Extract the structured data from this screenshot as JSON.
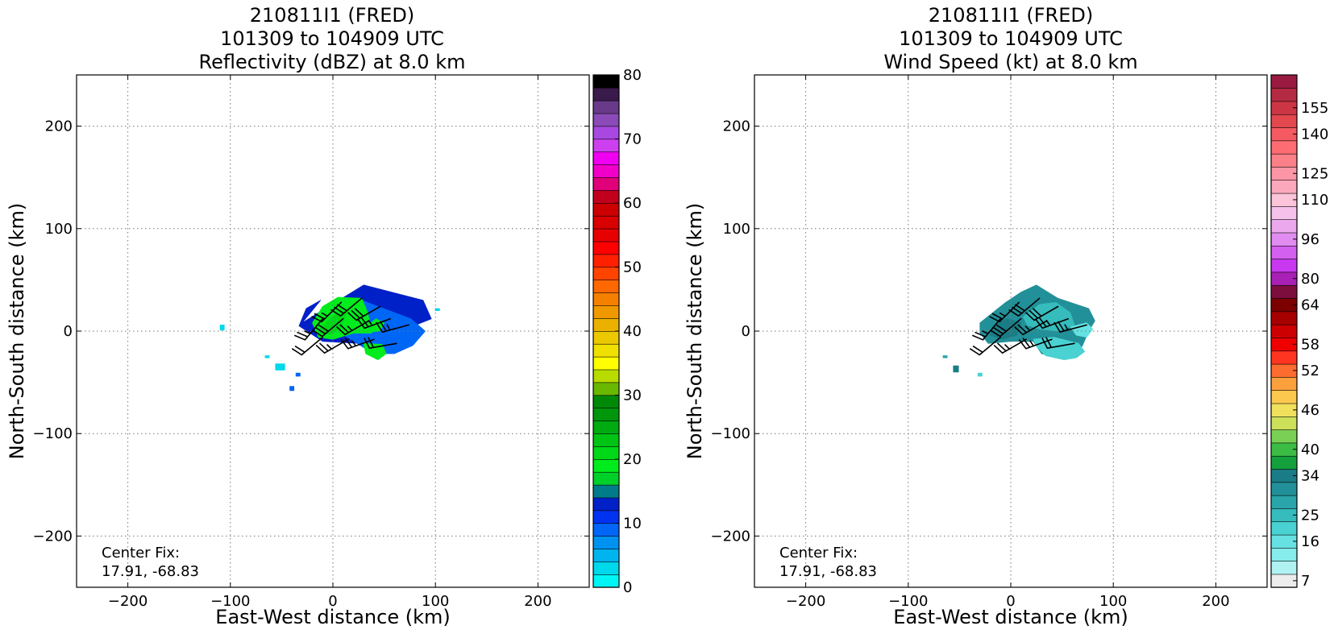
{
  "chart_data": [
    {
      "type": "heatmap",
      "title_lines": [
        "210811I1 (FRED)",
        "101309 to 104909 UTC",
        "Reflectivity (dBZ) at 8.0 km"
      ],
      "xlabel": "East-West distance (km)",
      "ylabel": "North-South distance (km)",
      "xlim": [
        -250,
        250
      ],
      "ylim": [
        -250,
        250
      ],
      "xticks": [
        -200,
        -100,
        0,
        100,
        200
      ],
      "yticks": [
        -200,
        -100,
        0,
        100,
        200
      ],
      "grid": true,
      "annotation": [
        "Center Fix:",
        "17.91, -68.83"
      ],
      "colorbar": {
        "ticks": [
          0,
          10,
          20,
          30,
          40,
          50,
          60,
          70,
          80
        ],
        "range": [
          0,
          80
        ],
        "colors": [
          "#00f5f5",
          "#00d8ec",
          "#00b4f0",
          "#0092f0",
          "#0066f5",
          "#0033f0",
          "#0020c8",
          "#007b8a",
          "#00d02a",
          "#00ec1c",
          "#00d818",
          "#00c414",
          "#00aa10",
          "#00960c",
          "#008808",
          "#6ab800",
          "#b8dc00",
          "#ffff00",
          "#f0e000",
          "#ecc800",
          "#ecb000",
          "#f09800",
          "#f58000",
          "#ff6800",
          "#ff4400",
          "#ff2000",
          "#ff0000",
          "#e60000",
          "#d80000",
          "#cc0000",
          "#c0001c",
          "#e0007a",
          "#f000c8",
          "#f000f0",
          "#cc40f0",
          "#a848e0",
          "#8a4ab8",
          "#6a3a8a",
          "#3a1a4a",
          "#000000"
        ]
      },
      "echo_regions": [
        {
          "level": 6,
          "x": [
            -30,
            30,
            88,
            96,
            76,
            58,
            33,
            27,
            -10,
            -33,
            -26,
            -12
          ],
          "y": [
            8,
            45,
            30,
            12,
            4,
            -14,
            -18,
            -12,
            -10,
            5,
            22,
            30
          ]
        },
        {
          "level": 4,
          "x": [
            -5,
            28,
            76,
            90,
            78,
            60,
            42,
            30,
            8,
            -12,
            -14
          ],
          "y": [
            16,
            30,
            12,
            0,
            -14,
            -22,
            -22,
            -16,
            -2,
            -2,
            8
          ]
        },
        {
          "level": 9,
          "x": [
            -20,
            -10,
            5,
            28,
            34,
            38,
            20,
            0,
            -14
          ],
          "y": [
            8,
            24,
            33,
            32,
            18,
            -2,
            -2,
            -8,
            -6
          ]
        },
        {
          "level": 10,
          "x": [
            -12,
            3,
            14,
            9,
            -2,
            -14
          ],
          "y": [
            4,
            16,
            20,
            5,
            -3,
            -2
          ]
        },
        {
          "level": 9,
          "x": [
            30,
            48,
            52,
            44,
            32
          ],
          "y": [
            -12,
            -13,
            -22,
            -28,
            -22
          ]
        },
        {
          "level": 9,
          "x": [
            34,
            46,
            50,
            42,
            36
          ],
          "y": [
            -1,
            0,
            8,
            12,
            7
          ]
        },
        {
          "level": 1,
          "x": [
            -110,
            -106,
            -106,
            -110
          ],
          "y": [
            6,
            6,
            1,
            1
          ]
        },
        {
          "level": 1,
          "x": [
            -56,
            -47,
            -47,
            -56
          ],
          "y": [
            -32,
            -32,
            -38,
            -38
          ]
        },
        {
          "level": 1,
          "x": [
            -66,
            -62,
            -62,
            -66
          ],
          "y": [
            -24,
            -24,
            -26,
            -26
          ]
        },
        {
          "level": 4,
          "x": [
            -36,
            -32,
            -32,
            -36
          ],
          "y": [
            -41,
            -41,
            -44,
            -44
          ]
        },
        {
          "level": 4,
          "x": [
            -42,
            -38,
            -38,
            -42
          ],
          "y": [
            -54,
            -54,
            -58,
            -58
          ]
        },
        {
          "level": 1,
          "x": [
            100,
            104,
            104,
            100
          ],
          "y": [
            22,
            22,
            20,
            20
          ]
        }
      ],
      "barbs": [
        {
          "x": 8,
          "y": 28,
          "dir": 225,
          "kt": 25
        },
        {
          "x": 28,
          "y": 32,
          "dir": 230,
          "kt": 30
        },
        {
          "x": 46,
          "y": 24,
          "dir": 240,
          "kt": 30
        },
        {
          "x": -10,
          "y": 12,
          "dir": 220,
          "kt": 25
        },
        {
          "x": 10,
          "y": 12,
          "dir": 230,
          "kt": 30
        },
        {
          "x": 35,
          "y": 10,
          "dir": 240,
          "kt": 25
        },
        {
          "x": 56,
          "y": 12,
          "dir": 250,
          "kt": 25
        },
        {
          "x": 74,
          "y": 6,
          "dir": 255,
          "kt": 25
        },
        {
          "x": -10,
          "y": -6,
          "dir": 230,
          "kt": 20
        },
        {
          "x": 15,
          "y": -8,
          "dir": 240,
          "kt": 25
        },
        {
          "x": 40,
          "y": -8,
          "dir": 250,
          "kt": 25
        },
        {
          "x": 62,
          "y": -12,
          "dir": 260,
          "kt": 20
        }
      ]
    },
    {
      "type": "heatmap",
      "title_lines": [
        "210811I1 (FRED)",
        "101309 to 104909 UTC",
        "Wind Speed (kt) at 8.0 km"
      ],
      "xlabel": "East-West distance (km)",
      "ylabel": "North-South distance (km)",
      "xlim": [
        -250,
        250
      ],
      "ylim": [
        -250,
        250
      ],
      "xticks": [
        -200,
        -100,
        0,
        100,
        200
      ],
      "yticks": [
        -200,
        -100,
        0,
        100,
        200
      ],
      "grid": true,
      "annotation": [
        "Center Fix:",
        "17.91, -68.83"
      ],
      "colorbar": {
        "ticks": [
          7,
          16,
          25,
          34,
          40,
          46,
          52,
          58,
          64,
          80,
          96,
          110,
          125,
          140,
          155
        ],
        "colors": [
          "#ececec",
          "#b0f2f2",
          "#86ecec",
          "#66e2e2",
          "#4ad2d2",
          "#36bcbc",
          "#2aa6aa",
          "#229098",
          "#1a7c86",
          "#14a03c",
          "#3cbc44",
          "#7ad054",
          "#cce05a",
          "#f0e05c",
          "#fcc84e",
          "#fca03e",
          "#fc6c2e",
          "#fc3420",
          "#ee0000",
          "#cc0000",
          "#a60000",
          "#7c0000",
          "#7c0e3e",
          "#a820b4",
          "#c838f0",
          "#d460f0",
          "#e08cf0",
          "#eca8ec",
          "#f6c2ec",
          "#fcc4d8",
          "#fca8bc",
          "#fc96a6",
          "#fc8088",
          "#fc6c72",
          "#f45a60",
          "#e2484e",
          "#cc3644",
          "#b42a42",
          "#9a1a42"
        ]
      },
      "wind_regions": [
        {
          "level": 7,
          "x": [
            -30,
            -5,
            10,
            25,
            46,
            76,
            82,
            76,
            70,
            64,
            48,
            30,
            22,
            0,
            -22,
            -30
          ],
          "y": [
            8,
            28,
            38,
            45,
            32,
            22,
            10,
            0,
            -14,
            -24,
            -26,
            -22,
            -10,
            -10,
            -12,
            -2
          ]
        },
        {
          "level": 4,
          "x": [
            22,
            42,
            66,
            72,
            64,
            52,
            34,
            26
          ],
          "y": [
            -8,
            -6,
            -12,
            -20,
            -26,
            -28,
            -24,
            -16
          ]
        },
        {
          "level": 3,
          "x": [
            58,
            74,
            80,
            74,
            64
          ],
          "y": [
            4,
            8,
            2,
            -6,
            -4
          ]
        },
        {
          "level": 5,
          "x": [
            12,
            28,
            44,
            58,
            62,
            46,
            28,
            16
          ],
          "y": [
            14,
            26,
            28,
            18,
            6,
            0,
            2,
            6
          ]
        },
        {
          "level": 8,
          "x": [
            -18,
            -4,
            10,
            6,
            -8,
            -20
          ],
          "y": [
            4,
            12,
            8,
            -4,
            -8,
            -4
          ]
        },
        {
          "level": 6,
          "x": [
            -66,
            -62,
            -62,
            -66
          ],
          "y": [
            -24,
            -24,
            -26,
            -26
          ]
        },
        {
          "level": 8,
          "x": [
            -56,
            -51,
            -51,
            -56
          ],
          "y": [
            -34,
            -34,
            -40,
            -40
          ]
        },
        {
          "level": 4,
          "x": [
            -32,
            -28,
            -28,
            -32
          ],
          "y": [
            -41,
            -41,
            -44,
            -44
          ]
        }
      ],
      "barbs": [
        {
          "x": 8,
          "y": 28,
          "dir": 225,
          "kt": 25
        },
        {
          "x": 28,
          "y": 32,
          "dir": 230,
          "kt": 30
        },
        {
          "x": 46,
          "y": 24,
          "dir": 240,
          "kt": 30
        },
        {
          "x": -10,
          "y": 12,
          "dir": 220,
          "kt": 25
        },
        {
          "x": 10,
          "y": 12,
          "dir": 230,
          "kt": 30
        },
        {
          "x": 35,
          "y": 10,
          "dir": 240,
          "kt": 25
        },
        {
          "x": 56,
          "y": 12,
          "dir": 250,
          "kt": 25
        },
        {
          "x": 74,
          "y": 6,
          "dir": 255,
          "kt": 25
        },
        {
          "x": -10,
          "y": -6,
          "dir": 230,
          "kt": 20
        },
        {
          "x": 15,
          "y": -8,
          "dir": 240,
          "kt": 25
        },
        {
          "x": 40,
          "y": -8,
          "dir": 250,
          "kt": 25
        },
        {
          "x": 62,
          "y": -12,
          "dir": 260,
          "kt": 20
        }
      ]
    }
  ]
}
